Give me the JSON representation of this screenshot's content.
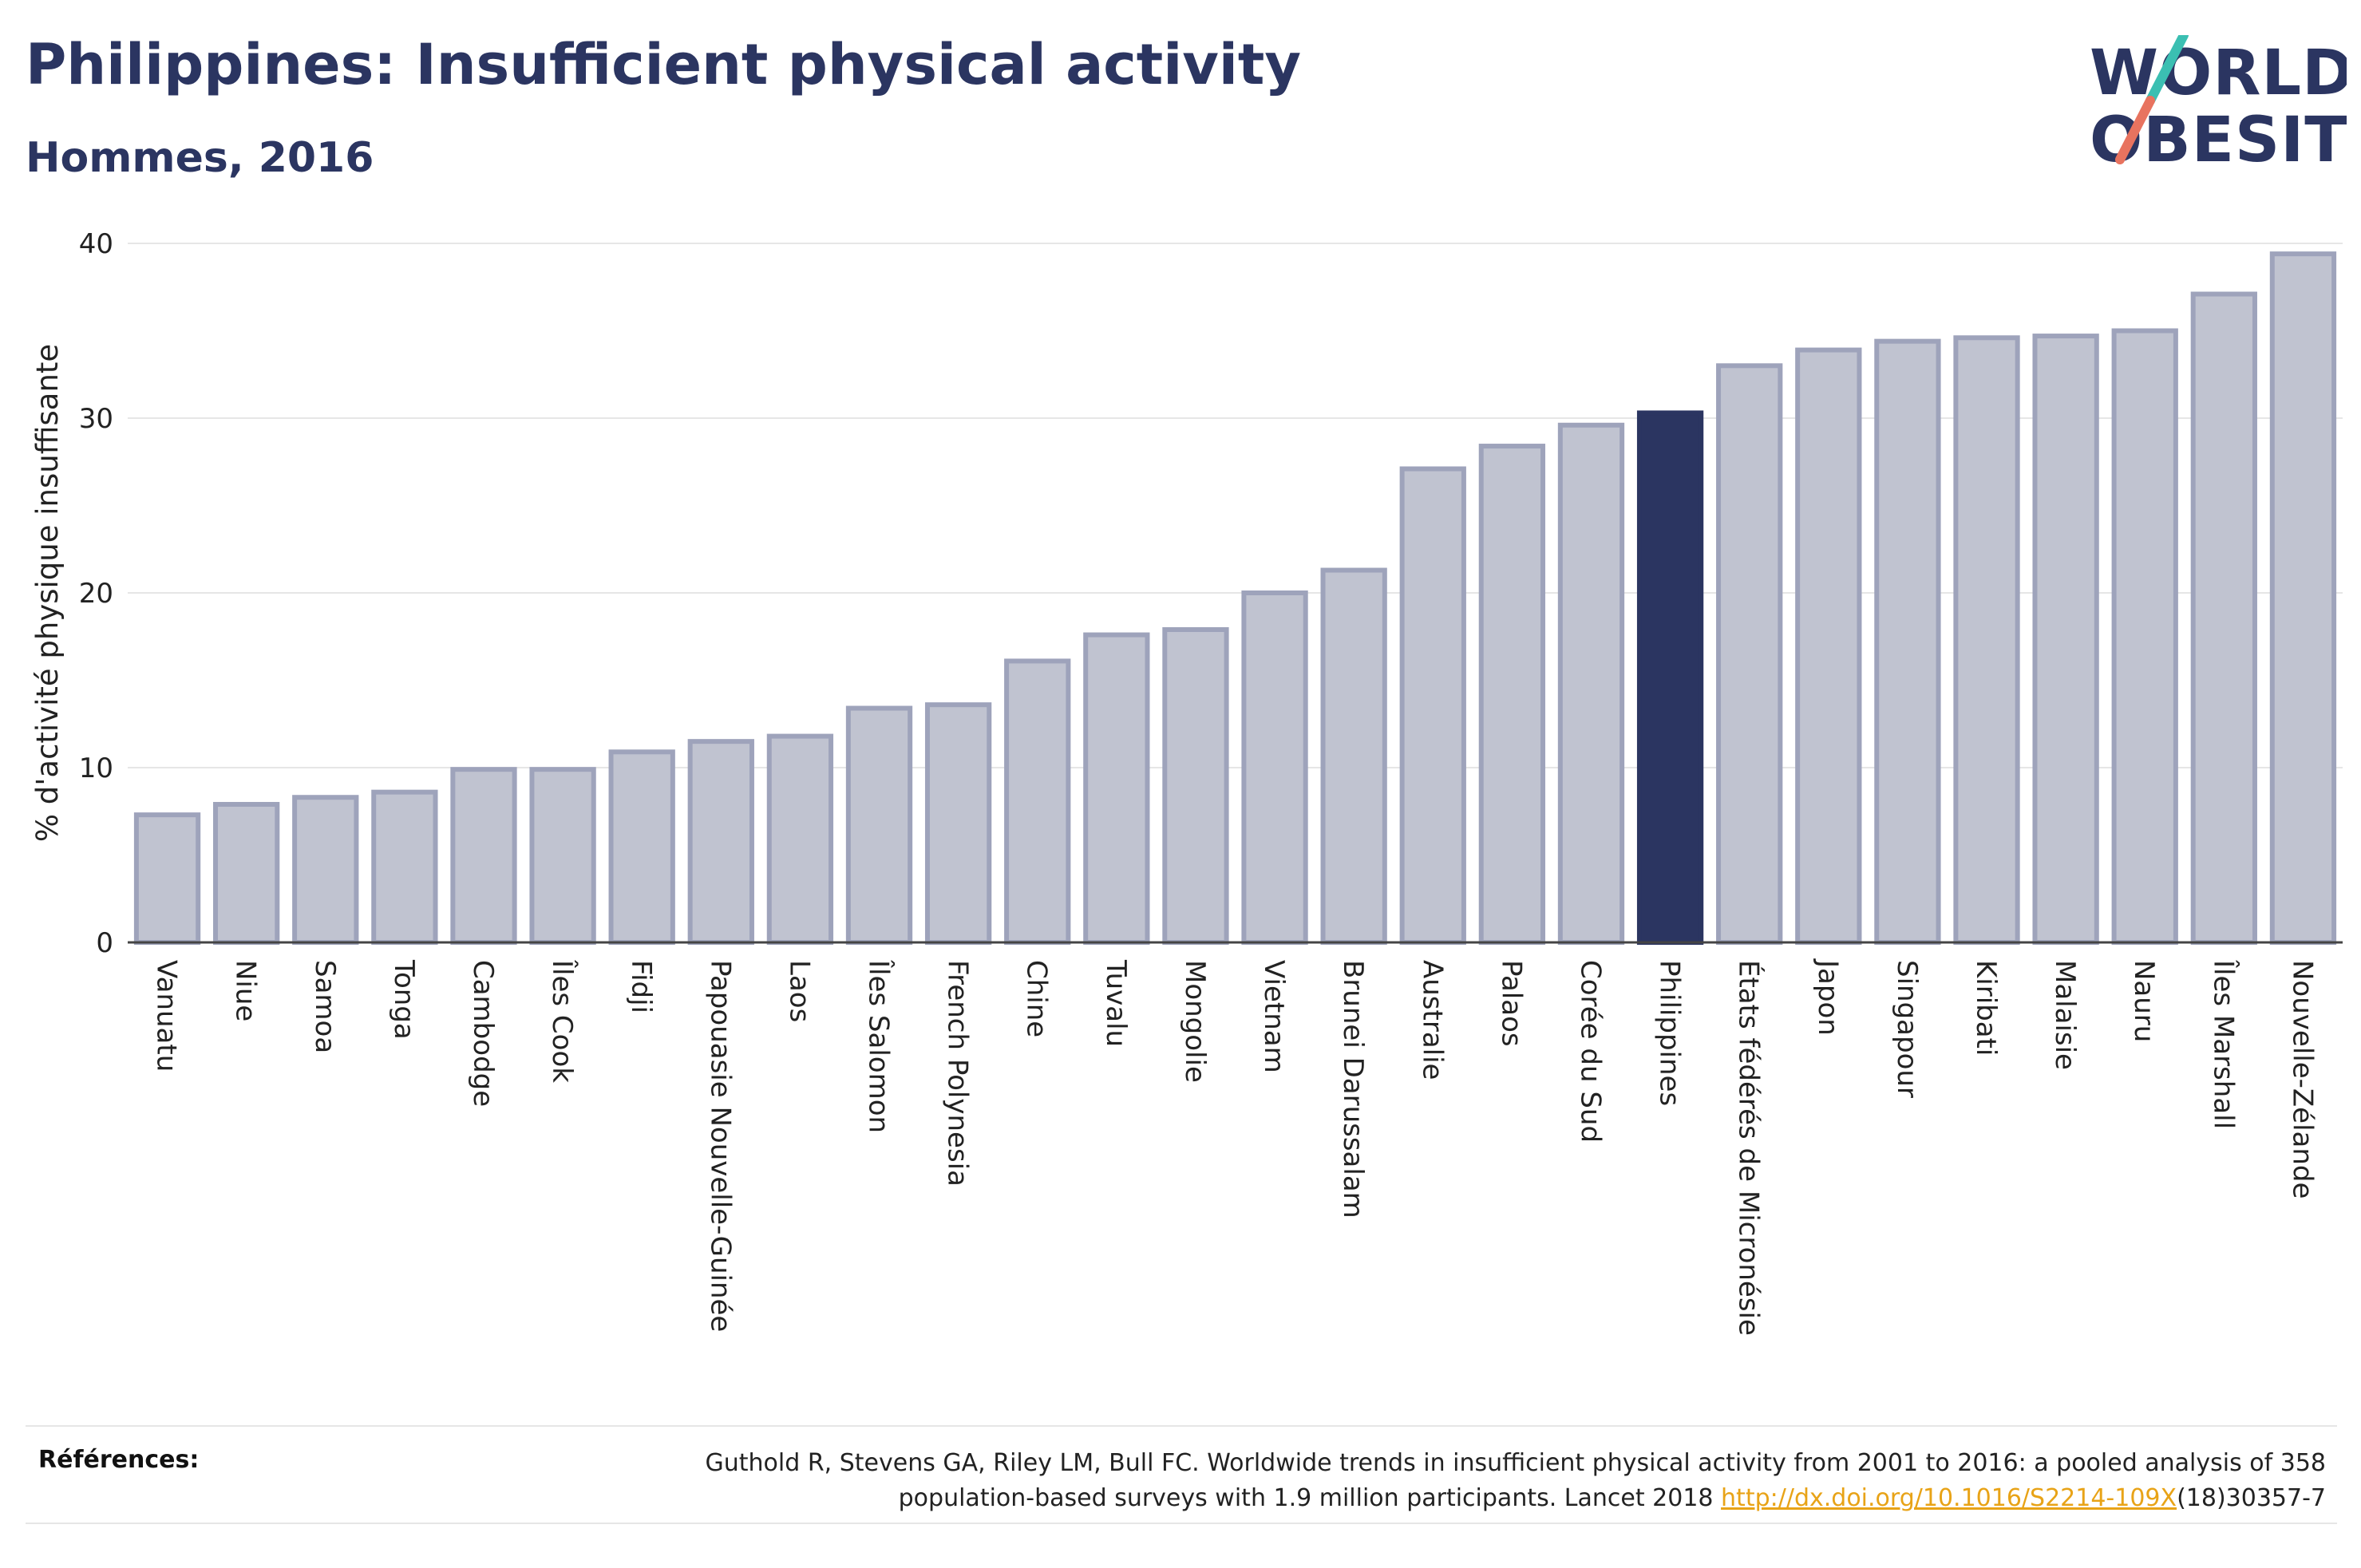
{
  "header": {
    "title": "Philippines: Insufficient physical activity",
    "subtitle": "Hommes, 2016"
  },
  "logo": {
    "line1": "WORLD",
    "line2": "OBESITY",
    "text_color": "#2b3561",
    "slash_top_color": "#3bbfb2",
    "slash_bottom_color": "#e8735f"
  },
  "colors": {
    "bar_fill": "#c0c3d0",
    "bar_stroke": "#9ea3bb",
    "highlight_fill": "#2b3561",
    "grid": "#e6e6e6",
    "axis": "#444444"
  },
  "chart_data": {
    "type": "bar",
    "title": "Philippines: Insufficient physical activity",
    "subtitle": "Hommes, 2016",
    "xlabel": "",
    "ylabel": "% d'activité physique insuffisante",
    "ylim": [
      0,
      40
    ],
    "yticks": [
      0,
      10,
      20,
      30,
      40
    ],
    "grid": true,
    "highlight": "Philippines",
    "categories": [
      "Vanuatu",
      "Niue",
      "Samoa",
      "Tonga",
      "Cambodge",
      "Îles Cook",
      "Fidji",
      "Papouasie Nouvelle-Guinée",
      "Laos",
      "Îles Salomon",
      "French Polynesia",
      "Chine",
      "Tuvalu",
      "Mongolie",
      "Vietnam",
      "Brunei Darussalam",
      "Australie",
      "Palaos",
      "Corée du Sud",
      "Philippines",
      "États fédérés de Micronésie",
      "Japon",
      "Singapour",
      "Kiribati",
      "Malaisie",
      "Nauru",
      "Îles Marshall",
      "Nouvelle-Zélande"
    ],
    "values": [
      7.3,
      7.9,
      8.3,
      8.6,
      9.9,
      9.9,
      10.9,
      11.5,
      11.8,
      13.4,
      13.6,
      16.1,
      17.6,
      17.9,
      20.0,
      21.3,
      27.1,
      28.4,
      29.6,
      30.3,
      33.0,
      33.9,
      34.4,
      34.6,
      34.7,
      35.0,
      37.1,
      39.4
    ]
  },
  "references": {
    "label": "Références:",
    "text_before": "Guthold R, Stevens GA, Riley LM, Bull FC. Worldwide trends in insufficient physical activity from 2001 to 2016: a pooled analysis of 358 population-based surveys with 1.9 million participants. Lancet 2018 ",
    "link_text": "http://dx.doi.org/10.1016/S2214-109X",
    "text_after": "(18)30357-7"
  }
}
